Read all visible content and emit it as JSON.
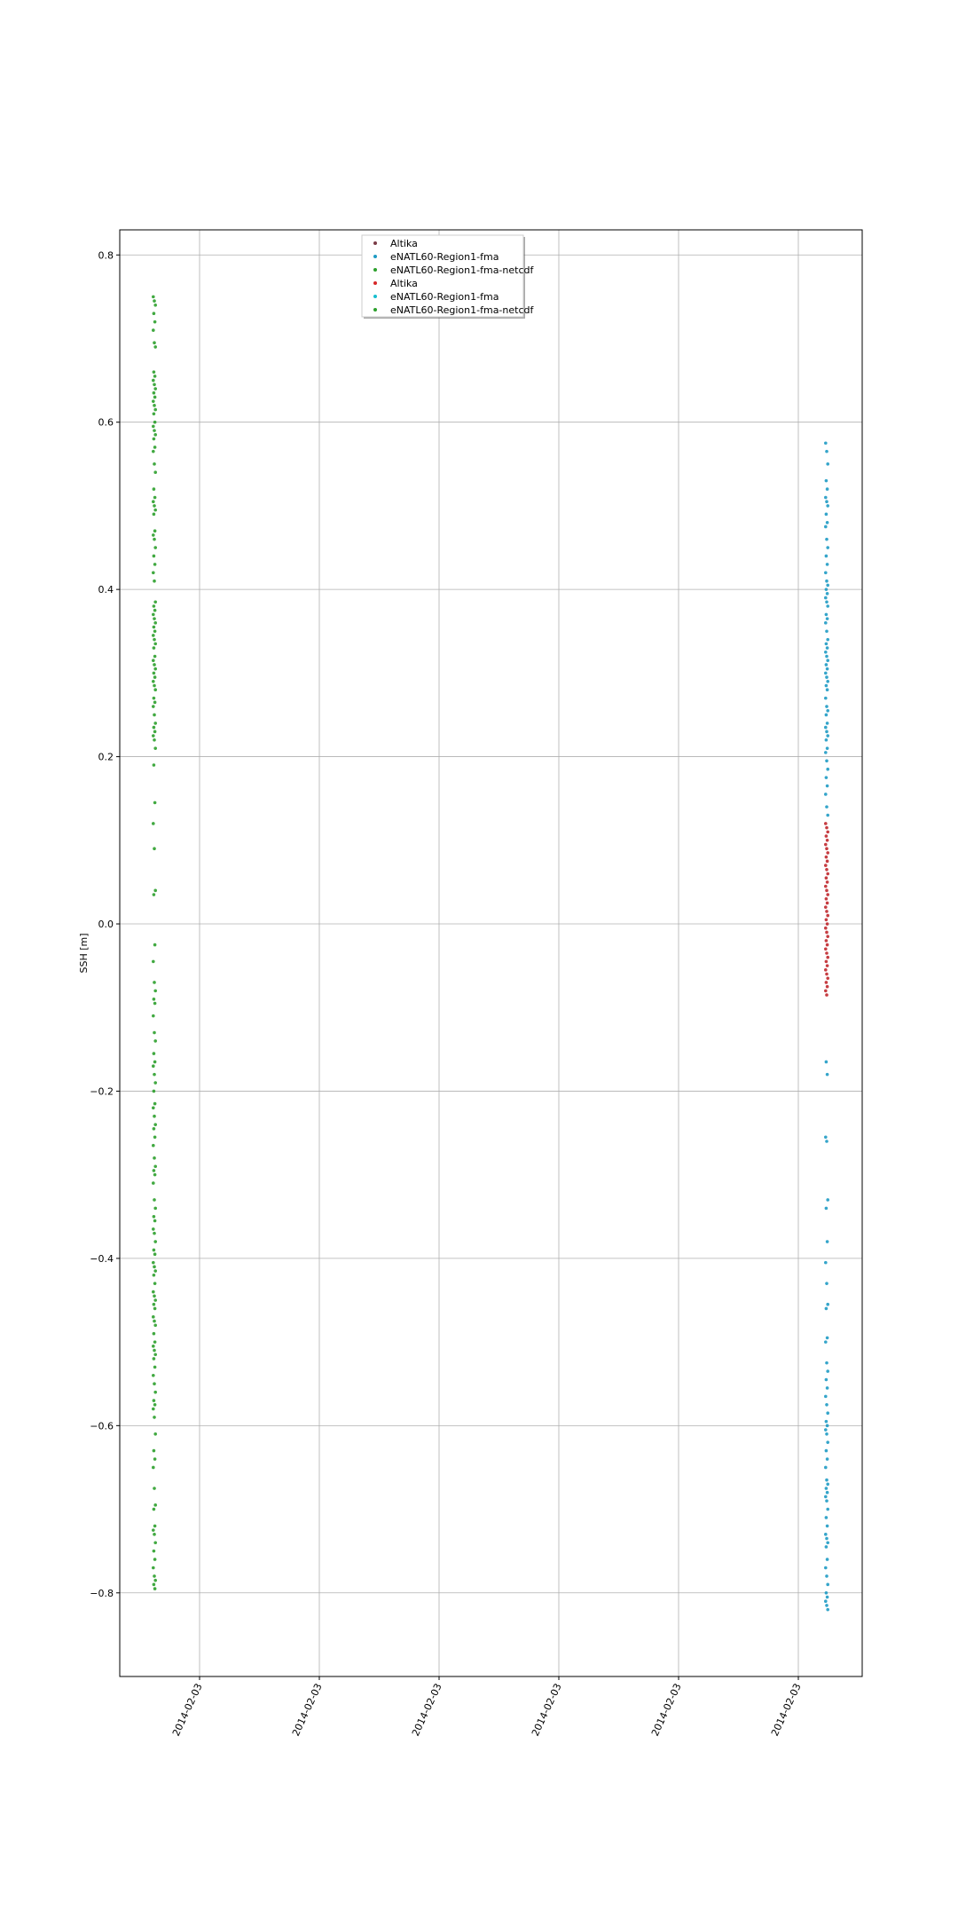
{
  "chart_data": {
    "type": "scatter",
    "title": "",
    "xlabel": "",
    "ylabel": "SSH [m]",
    "ylim": [
      -0.9,
      0.83
    ],
    "yticks": [
      -0.8,
      -0.6,
      -0.4,
      -0.2,
      0.0,
      0.2,
      0.4,
      0.6,
      0.8
    ],
    "ytick_labels": [
      "−0.8",
      "−0.6",
      "−0.4",
      "−0.2",
      "0.0",
      "0.2",
      "0.4",
      "0.6",
      "0.8"
    ],
    "xtick_labels": [
      "2014-02-03",
      "2014-02-03",
      "2014-02-03",
      "2014-02-03",
      "2014-02-03",
      "2014-02-03"
    ],
    "grid": true,
    "legend_position": "top-center",
    "legend": [
      {
        "label": "Altika",
        "color": "#7a3b46"
      },
      {
        "label": "eNATL60-Region1-fma",
        "color": "#1f9bc4"
      },
      {
        "label": "eNATL60-Region1-fma-netcdf",
        "color": "#2ca02c"
      },
      {
        "label": "Altika",
        "color": "#d62728"
      },
      {
        "label": "eNATL60-Region1-fma",
        "color": "#17becf"
      },
      {
        "label": "eNATL60-Region1-fma-netcdf",
        "color": "#2ca02c"
      }
    ],
    "series": [
      {
        "name": "eNATL60-Region1-fma-netcdf",
        "color": "#2ca02c",
        "x_group": "left",
        "y": [
          0.75,
          0.745,
          0.74,
          0.73,
          0.72,
          0.71,
          0.695,
          0.69,
          0.66,
          0.655,
          0.65,
          0.645,
          0.64,
          0.635,
          0.63,
          0.625,
          0.62,
          0.615,
          0.61,
          0.6,
          0.595,
          0.59,
          0.585,
          0.58,
          0.57,
          0.565,
          0.55,
          0.54,
          0.52,
          0.51,
          0.505,
          0.5,
          0.495,
          0.49,
          0.47,
          0.465,
          0.46,
          0.45,
          0.44,
          0.43,
          0.42,
          0.41,
          0.385,
          0.38,
          0.375,
          0.37,
          0.365,
          0.36,
          0.355,
          0.35,
          0.345,
          0.34,
          0.335,
          0.33,
          0.32,
          0.315,
          0.31,
          0.305,
          0.3,
          0.295,
          0.29,
          0.285,
          0.28,
          0.27,
          0.265,
          0.26,
          0.25,
          0.24,
          0.235,
          0.23,
          0.225,
          0.22,
          0.21,
          0.19,
          0.145,
          0.12,
          0.09,
          0.04,
          0.035,
          -0.025,
          -0.045,
          -0.07,
          -0.08,
          -0.09,
          -0.095,
          -0.11,
          -0.13,
          -0.14,
          -0.155,
          -0.165,
          -0.17,
          -0.18,
          -0.19,
          -0.2,
          -0.215,
          -0.22,
          -0.23,
          -0.24,
          -0.245,
          -0.255,
          -0.265,
          -0.28,
          -0.29,
          -0.295,
          -0.3,
          -0.31,
          -0.33,
          -0.34,
          -0.35,
          -0.355,
          -0.365,
          -0.37,
          -0.38,
          -0.39,
          -0.395,
          -0.405,
          -0.41,
          -0.415,
          -0.42,
          -0.43,
          -0.44,
          -0.445,
          -0.45,
          -0.455,
          -0.46,
          -0.47,
          -0.475,
          -0.48,
          -0.49,
          -0.5,
          -0.505,
          -0.51,
          -0.515,
          -0.52,
          -0.53,
          -0.54,
          -0.55,
          -0.56,
          -0.57,
          -0.575,
          -0.58,
          -0.59,
          -0.61,
          -0.63,
          -0.64,
          -0.65,
          -0.675,
          -0.695,
          -0.7,
          -0.72,
          -0.725,
          -0.73,
          -0.74,
          -0.75,
          -0.76,
          -0.77,
          -0.78,
          -0.785,
          -0.79,
          -0.795
        ]
      },
      {
        "name": "eNATL60-Region1-fma",
        "color": "#1f9bc4",
        "x_group": "right",
        "y": [
          0.575,
          0.565,
          0.55,
          0.53,
          0.52,
          0.51,
          0.505,
          0.5,
          0.49,
          0.48,
          0.475,
          0.46,
          0.45,
          0.44,
          0.43,
          0.42,
          0.41,
          0.405,
          0.4,
          0.395,
          0.39,
          0.385,
          0.38,
          0.37,
          0.365,
          0.36,
          0.35,
          0.34,
          0.335,
          0.33,
          0.325,
          0.32,
          0.315,
          0.31,
          0.305,
          0.3,
          0.295,
          0.29,
          0.285,
          0.28,
          0.27,
          0.26,
          0.255,
          0.25,
          0.24,
          0.235,
          0.23,
          0.225,
          0.22,
          0.21,
          0.205,
          0.195,
          0.185,
          0.175,
          0.165,
          0.155,
          0.14,
          0.13,
          -0.165,
          -0.18,
          -0.255,
          -0.26,
          -0.33,
          -0.34,
          -0.38,
          -0.405,
          -0.43,
          -0.455,
          -0.46,
          -0.495,
          -0.5,
          -0.525,
          -0.535,
          -0.545,
          -0.555,
          -0.565,
          -0.575,
          -0.585,
          -0.595,
          -0.6,
          -0.605,
          -0.61,
          -0.62,
          -0.63,
          -0.64,
          -0.65,
          -0.665,
          -0.67,
          -0.675,
          -0.68,
          -0.685,
          -0.69,
          -0.7,
          -0.71,
          -0.72,
          -0.73,
          -0.735,
          -0.74,
          -0.745,
          -0.76,
          -0.77,
          -0.78,
          -0.79,
          -0.8,
          -0.805,
          -0.81,
          -0.815,
          -0.82
        ]
      },
      {
        "name": "Altika",
        "color": "#c0282d",
        "x_group": "right",
        "y": [
          0.12,
          0.115,
          0.11,
          0.105,
          0.1,
          0.095,
          0.09,
          0.085,
          0.08,
          0.075,
          0.07,
          0.065,
          0.06,
          0.055,
          0.05,
          0.045,
          0.04,
          0.035,
          0.03,
          0.025,
          0.02,
          0.015,
          0.01,
          0.005,
          0.0,
          -0.005,
          -0.01,
          -0.015,
          -0.02,
          -0.025,
          -0.03,
          -0.035,
          -0.04,
          -0.045,
          -0.05,
          -0.055,
          -0.06,
          -0.065,
          -0.07,
          -0.075,
          -0.08,
          -0.085
        ]
      }
    ]
  }
}
